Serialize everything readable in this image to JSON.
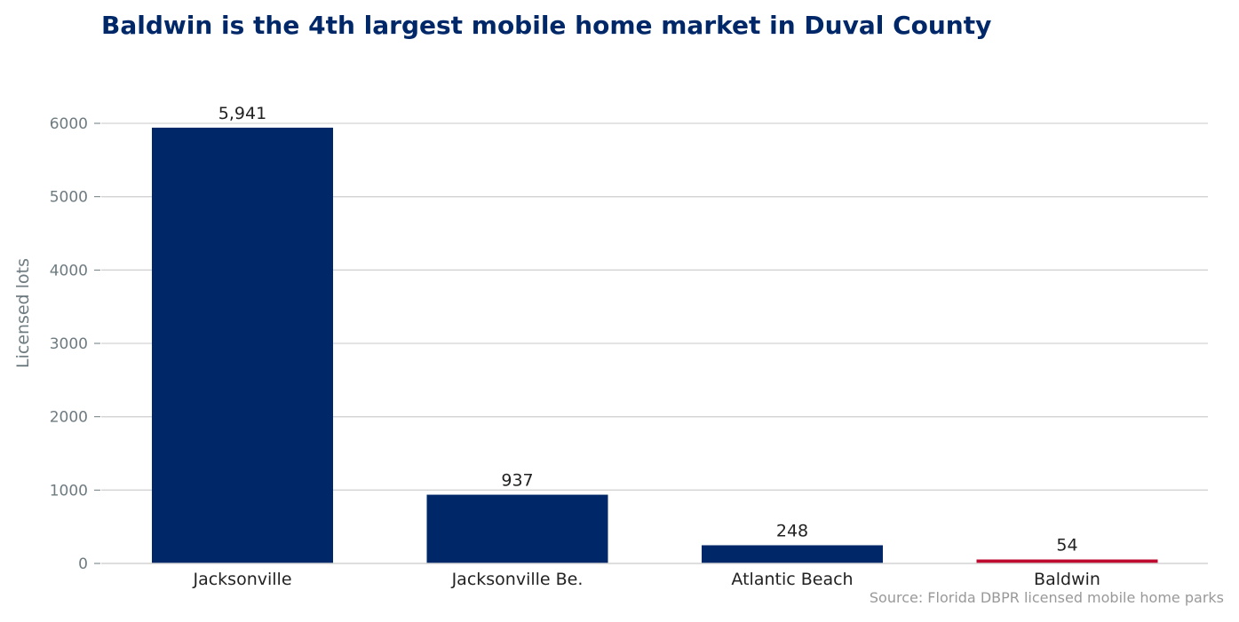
{
  "chart_data": {
    "type": "bar",
    "title": "Baldwin is the 4th largest mobile home market in Duval County",
    "ylabel": "Licensed lots",
    "xlabel": "",
    "categories": [
      "Jacksonville",
      "Jacksonville Be.",
      "Atlantic Beach",
      "Baldwin"
    ],
    "values": [
      5941,
      937,
      248,
      54
    ],
    "data_labels": [
      "5,941",
      "937",
      "248",
      "54"
    ],
    "ylim": [
      0,
      6600
    ],
    "yticks": [
      0,
      1000,
      2000,
      3000,
      4000,
      5000,
      6000
    ],
    "grid": true,
    "legend": "none",
    "highlight_category": "Baldwin",
    "colors": {
      "bar": "#002868",
      "highlight": "#BF0A30",
      "title": "#002868",
      "grid": "#d3d3d3",
      "tick_text": "#6e7b80",
      "category_text": "#222222",
      "source_text": "#999999"
    },
    "source": "Source: Florida DBPR licensed mobile home parks"
  }
}
